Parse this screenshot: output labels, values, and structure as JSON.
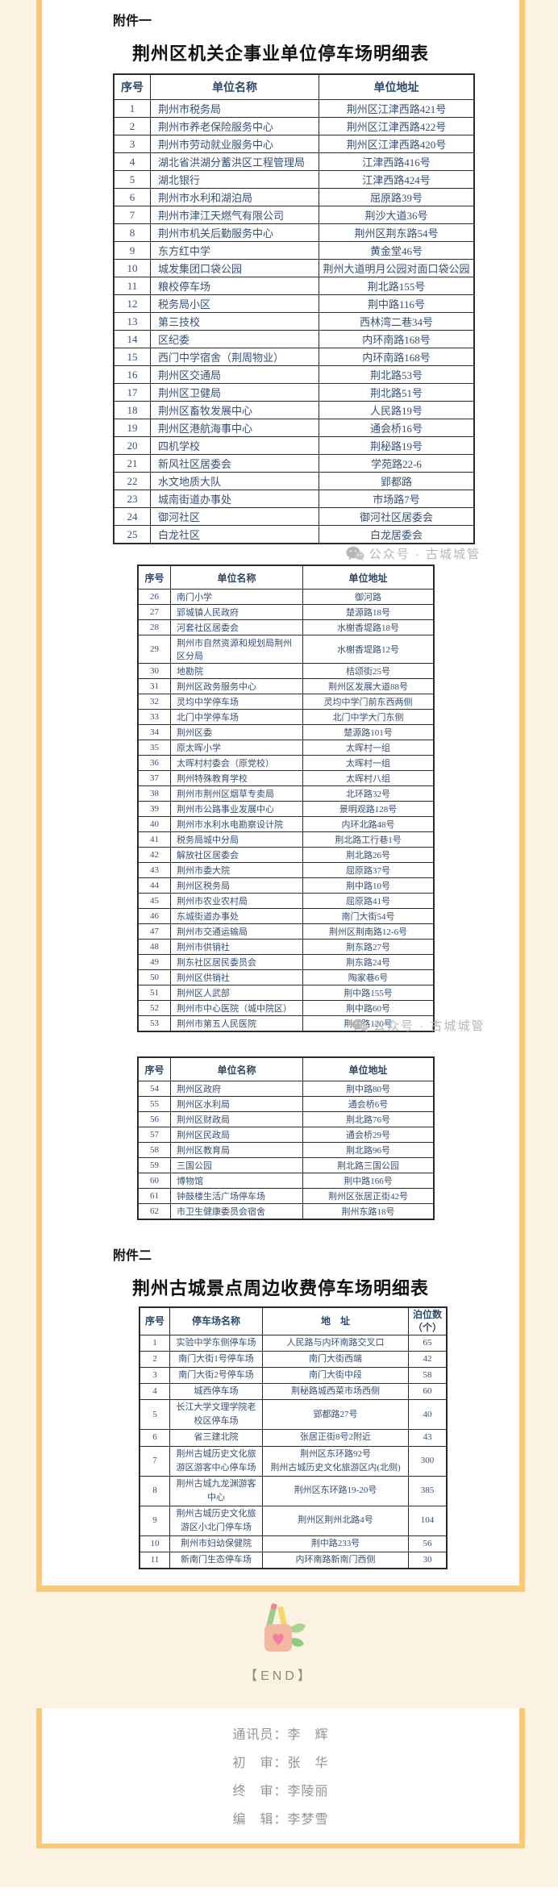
{
  "colors": {
    "accent_orange": "#f8c979",
    "cream_bg": "#fcf2e2",
    "table_text": "#3a5173",
    "watermark_gray": "#b7b7b7"
  },
  "icons": {
    "wechat": "wechat-icon",
    "pencil_cup": "pencil-cup-icon"
  },
  "watermark": {
    "text": "公众号 · 古城城管"
  },
  "attachment1": {
    "label": "附件一",
    "title": "荆州区机关企事业单位停车场明细表",
    "headers": [
      "序号",
      "单位名称",
      "单位地址"
    ],
    "rows_1_25": [
      [
        "1",
        "荆州市税务局",
        "荆州区江津西路421号"
      ],
      [
        "2",
        "荆州市养老保险服务中心",
        "荆州区江津西路422号"
      ],
      [
        "3",
        "荆州市劳动就业服务中心",
        "荆州区江津西路420号"
      ],
      [
        "4",
        "湖北省洪湖分蓄洪区工程管理局",
        "江津西路416号"
      ],
      [
        "5",
        "湖北银行",
        "江津西路424号"
      ],
      [
        "6",
        "荆州市水利和湖泊局",
        "屈原路39号"
      ],
      [
        "7",
        "荆州市津江天燃气有限公司",
        "荆沙大道36号"
      ],
      [
        "8",
        "荆州市机关后勤服务中心",
        "荆州区荆东路54号"
      ],
      [
        "9",
        "东方红中学",
        "黄金堂46号"
      ],
      [
        "10",
        "城发集团口袋公园",
        "荆州大道明月公园对面口袋公园"
      ],
      [
        "11",
        "粮校停车场",
        "荆北路155号"
      ],
      [
        "12",
        "税务局小区",
        "荆中路116号"
      ],
      [
        "13",
        "第三技校",
        "西林湾二巷34号"
      ],
      [
        "14",
        "区纪委",
        "内环南路168号"
      ],
      [
        "15",
        "西门中学宿舍（荆周物业）",
        "内环南路168号"
      ],
      [
        "16",
        "荆州区交通局",
        "荆北路53号"
      ],
      [
        "17",
        "荆州区卫健局",
        "荆北路51号"
      ],
      [
        "18",
        "荆州区畜牧发展中心",
        "人民路19号"
      ],
      [
        "19",
        "荆州区港航海事中心",
        "通会桥16号"
      ],
      [
        "20",
        "四机学校",
        "荆秘路19号"
      ],
      [
        "21",
        "新风社区居委会",
        "学苑路22-6"
      ],
      [
        "22",
        "水文地质大队",
        "郢都路"
      ],
      [
        "23",
        "城南街道办事处",
        "市场路7号"
      ],
      [
        "24",
        "御河社区",
        "御河社区居委会"
      ],
      [
        "25",
        "白龙社区",
        "白龙居委会"
      ]
    ],
    "rows_26_53": [
      [
        "26",
        "南门小学",
        "御河路"
      ],
      [
        "27",
        "郢城镇人民政府",
        "楚源路18号"
      ],
      [
        "28",
        "河套社区居委会",
        "水榭香堤路18号"
      ],
      [
        "29",
        "荆州市自然资源和规划局荆州区分局",
        "水榭香堤路12号"
      ],
      [
        "30",
        "地勘院",
        "桔颂街25号"
      ],
      [
        "31",
        "荆州区政务服务中心",
        "荆州区发展大道88号"
      ],
      [
        "32",
        "灵均中学停车场",
        "灵均中学门前东西两侧"
      ],
      [
        "33",
        "北门中学停车场",
        "北门中学大门东侧"
      ],
      [
        "34",
        "荆州区委",
        "楚源路101号"
      ],
      [
        "35",
        "原太晖小学",
        "太晖村一组"
      ],
      [
        "36",
        "太晖村村委会（原党校）",
        "太晖村一组"
      ],
      [
        "37",
        "荆州特殊教育学校",
        "太晖村八组"
      ],
      [
        "38",
        "荆州市荆州区烟草专卖局",
        "北环路32号"
      ],
      [
        "39",
        "荆州市公路事业发展中心",
        "景明观路128号"
      ],
      [
        "40",
        "荆州市水利水电勘察设计院",
        "内环北路48号"
      ],
      [
        "41",
        "税务局城中分局",
        "荆北路工行巷1号"
      ],
      [
        "42",
        "解放社区居委会",
        "荆北路26号"
      ],
      [
        "43",
        "荆州市委大院",
        "屈原路37号"
      ],
      [
        "44",
        "荆州区税务局",
        "荆中路10号"
      ],
      [
        "45",
        "荆州市农业农村局",
        "屈原路41号"
      ],
      [
        "46",
        "东城街道办事处",
        "南门大街54号"
      ],
      [
        "47",
        "荆州市交通运输局",
        "荆州区荆南路12-6号"
      ],
      [
        "48",
        "荆州市供销社",
        "荆东路27号"
      ],
      [
        "49",
        "荆东社区居民委员会",
        "荆东路24号"
      ],
      [
        "50",
        "荆州区供销社",
        "陶家巷6号"
      ],
      [
        "51",
        "荆州区人武部",
        "荆中路155号"
      ],
      [
        "52",
        "荆州市中心医院（城中院区）",
        "荆中路60号"
      ],
      [
        "53",
        "荆州市第五人民医院",
        "荆中路120号"
      ]
    ],
    "rows_54_62": [
      [
        "54",
        "荆州区政府",
        "荆中路80号"
      ],
      [
        "55",
        "荆州区水利局",
        "通会桥6号"
      ],
      [
        "56",
        "荆州区财政局",
        "荆北路76号"
      ],
      [
        "57",
        "荆州区民政局",
        "通会桥29号"
      ],
      [
        "58",
        "荆州区教育局",
        "荆北路96号"
      ],
      [
        "59",
        "三国公园",
        "荆北路三国公园"
      ],
      [
        "60",
        "博物馆",
        "荆中路166号"
      ],
      [
        "61",
        "钟鼓楼生活广场停车场",
        "荆州区张居正街42号"
      ],
      [
        "62",
        "市卫生健康委员会宿舍",
        "荆州东路18号"
      ]
    ]
  },
  "attachment2": {
    "label": "附件二",
    "title": "荆州古城景点周边收费停车场明细表",
    "headers": [
      "序号",
      "停车场名称",
      "地　址",
      "泊位数\n（个）"
    ],
    "rows": [
      [
        "1",
        "实验中学东侧停车场",
        "人民路与内环南路交叉口",
        "65"
      ],
      [
        "2",
        "南门大街1号停车场",
        "南门大街西端",
        "42"
      ],
      [
        "3",
        "南门大街2号停车场",
        "南门大街中段",
        "58"
      ],
      [
        "4",
        "城西停车场",
        "荆秘路城西菜市场西侧",
        "60"
      ],
      [
        "5",
        "长江大学文理学院老校区停车场",
        "郢都路27号",
        "40"
      ],
      [
        "6",
        "省三建北院",
        "张居正街8号2附近",
        "43"
      ],
      [
        "7",
        "荆州古城历史文化旅游区游客中心停车场",
        "荆州区东环路92号\n荆州古城历史文化旅游区内(北侧)",
        "300"
      ],
      [
        "8",
        "荆州古城九龙渊游客中心",
        "荆州区东环路19-20号",
        "385"
      ],
      [
        "9",
        "荆州古城历史文化旅游区小北门停车场",
        "荆州区荆州北路4号",
        "104"
      ],
      [
        "10",
        "荆州市妇幼保健院",
        "荆中路233号",
        "56"
      ],
      [
        "11",
        "新南门生态停车场",
        "内环南路新南门西侧",
        "30"
      ]
    ]
  },
  "end": {
    "label": "【END】"
  },
  "credits": {
    "lines": [
      "通讯员：李　辉",
      "初　审：张　华",
      "终　审：李陵丽",
      "编　辑：李梦雪"
    ]
  }
}
